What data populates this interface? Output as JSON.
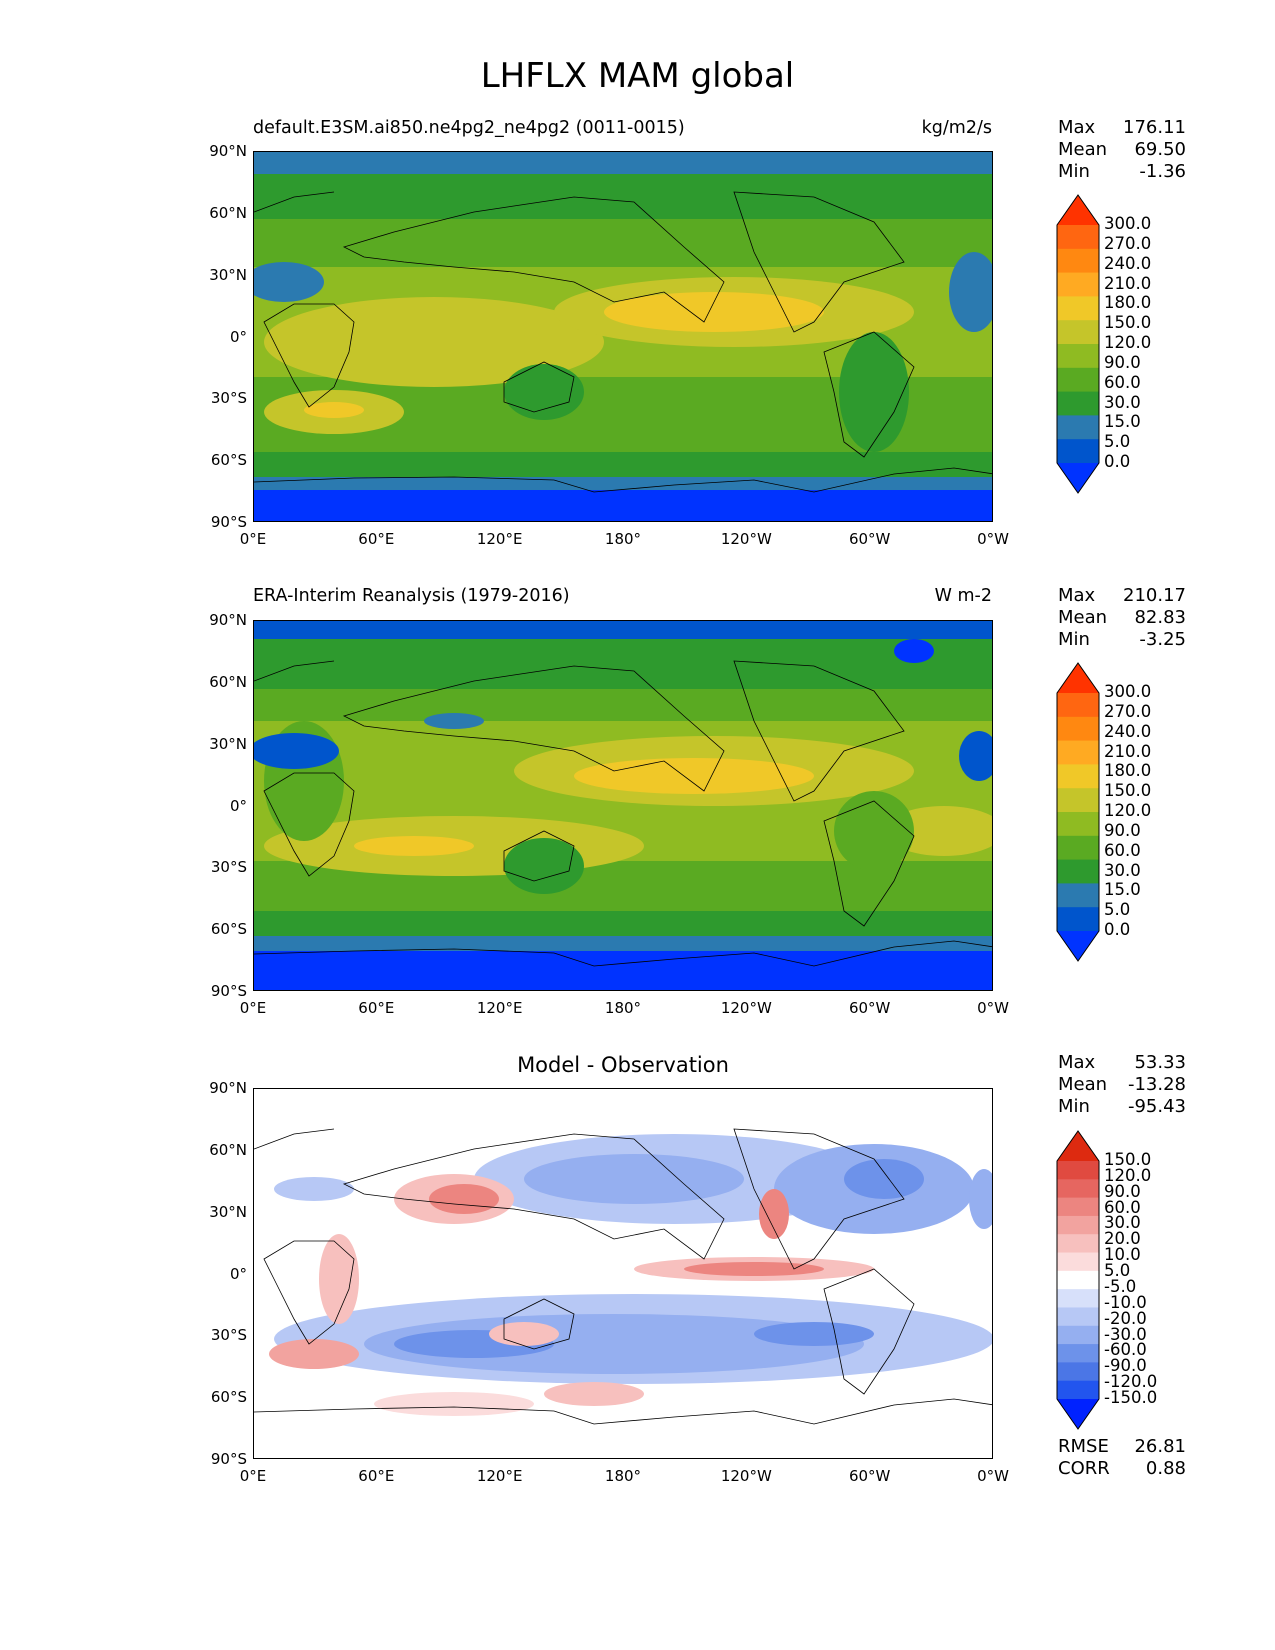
{
  "title": "LHFLX MAM global",
  "lat_ticks": [
    "90°N",
    "60°N",
    "30°N",
    "0°",
    "30°S",
    "60°S",
    "90°S"
  ],
  "lon_ticks": [
    "0°E",
    "60°E",
    "120°E",
    "180°",
    "120°W",
    "60°W",
    "0°W"
  ],
  "panels": [
    {
      "id": "test",
      "title_left": "default.E3SM.ai850.ne4pg2_ne4pg2 (0011-0015)",
      "title_right": "kg/m2/s",
      "stats": [
        [
          "Max",
          "176.11"
        ],
        [
          "Mean",
          "69.50"
        ],
        [
          "Min",
          "-1.36"
        ]
      ],
      "colorbar_labels": [
        "300.0",
        "270.0",
        "240.0",
        "210.0",
        "180.0",
        "150.0",
        "120.0",
        "90.0",
        "60.0",
        "30.0",
        "15.0",
        "5.0",
        "0.0"
      ]
    },
    {
      "id": "reference",
      "title_left": "ERA-Interim Reanalysis (1979-2016)",
      "title_right": "W m-2",
      "stats": [
        [
          "Max",
          "210.17"
        ],
        [
          "Mean",
          "82.83"
        ],
        [
          "Min",
          "-3.25"
        ]
      ],
      "colorbar_labels": [
        "300.0",
        "270.0",
        "240.0",
        "210.0",
        "180.0",
        "150.0",
        "120.0",
        "90.0",
        "60.0",
        "30.0",
        "15.0",
        "5.0",
        "0.0"
      ]
    },
    {
      "id": "difference",
      "title_center": "Model - Observation",
      "stats": [
        [
          "Max",
          "53.33"
        ],
        [
          "Mean",
          "-13.28"
        ],
        [
          "Min",
          "-95.43"
        ]
      ],
      "colorbar_labels": [
        "150.0",
        "120.0",
        "90.0",
        "60.0",
        "30.0",
        "20.0",
        "10.0",
        "5.0",
        "-5.0",
        "-10.0",
        "-20.0",
        "-30.0",
        "-60.0",
        "-90.0",
        "-120.0",
        "-150.0"
      ],
      "metrics": [
        [
          "RMSE",
          "26.81"
        ],
        [
          "CORR",
          "0.88"
        ]
      ]
    }
  ],
  "colors": {
    "abs_scale": [
      "#0033ff",
      "#0055cc",
      "#2b7ab0",
      "#2e9a2e",
      "#5aaa22",
      "#8fbb22",
      "#c5c52a",
      "#f0c828",
      "#ffaa22",
      "#ff8811",
      "#ff6611",
      "#ff3300"
    ],
    "diff_scale": [
      "#0022ff",
      "#2255ee",
      "#4b76e6",
      "#6d92ea",
      "#95aff0",
      "#b7c8f5",
      "#d7e0fa",
      "#ffffff",
      "#fbdcdc",
      "#f7c0be",
      "#f2a39f",
      "#ec8580",
      "#e66660",
      "#e04a40",
      "#dd2a10"
    ]
  }
}
